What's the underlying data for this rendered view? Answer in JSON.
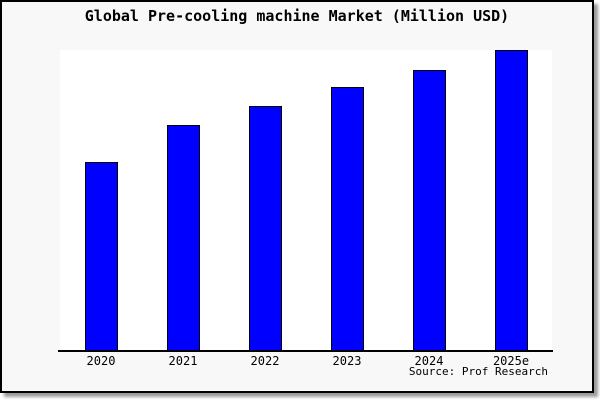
{
  "chart": {
    "title": "Global Pre-cooling machine Market (Million USD)",
    "source_note": "Source: Prof Research"
  },
  "chart_data": {
    "type": "bar",
    "title": "Global Pre-cooling machine Market (Million USD)",
    "categories": [
      "2020",
      "2021",
      "2022",
      "2023",
      "2024",
      "2025e"
    ],
    "values": [
      62.7,
      75.0,
      81.3,
      87.7,
      93.3,
      100.0
    ],
    "value_scale_note": "no y-axis ticks, gridlines or value labels are shown; values estimated as percent of tallest bar (2025e = 100)",
    "xlabel": "",
    "ylabel": "",
    "ylim": [
      0,
      100
    ],
    "grid": false,
    "legend": false,
    "source": "Source: Prof Research"
  },
  "colors": {
    "outer_background": "#f8f8f8",
    "plot_background": "#ffffff",
    "bar_fill": "#0000ff",
    "bar_border": "#000000",
    "frame_border": "#000000",
    "axis_line": "#000000",
    "text": "#000000"
  }
}
